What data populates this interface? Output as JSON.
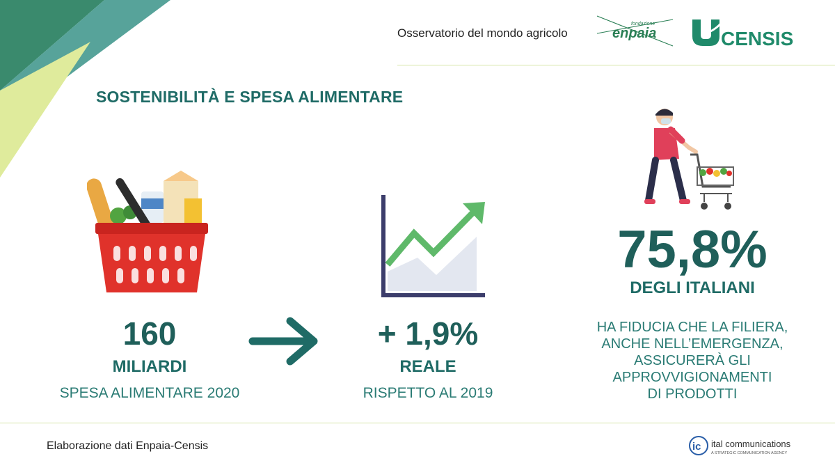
{
  "header": {
    "caption": "Osservatorio del mondo agricolo",
    "logos": {
      "enpaia_small": "fondazione",
      "enpaia_main": "enpaia",
      "censis": "CENSIS"
    }
  },
  "title": "SOSTENIBILITÀ E SPESA ALIMENTARE",
  "stats": {
    "spending": {
      "value": "160",
      "unit": "MILIARDI",
      "desc": "SPESA ALIMENTARE 2020"
    },
    "growth": {
      "value": "+ 1,9%",
      "unit": "REALE",
      "desc": "RISPETTO AL 2019"
    },
    "trust": {
      "value": "75,8%",
      "unit": "DEGLI ITALIANI",
      "desc_lines": [
        "HA FIDUCIA CHE LA FILIERA,",
        "ANCHE NELL’EMERGENZA,",
        "ASSICURERÀ GLI",
        "APPROVVIGIONAMENTI",
        "DI PRODOTTI"
      ]
    }
  },
  "footer": {
    "source": "Elaborazione dati Enpaia-Censis",
    "ital_name": "ital communications",
    "ital_tagline": "A STRATEGIC COMMUNICATION AGENCY",
    "ital_mark": "ic"
  },
  "icons": [
    "shopping-basket-icon",
    "arrow-right-icon",
    "growth-chart-icon",
    "shopper-cart-icon"
  ],
  "colors": {
    "primary": "#1f6b66",
    "accent_green": "#5fb96a",
    "lime": "#dfeb9c",
    "basket_red": "#e0322b",
    "shirt": "#e0405a"
  }
}
